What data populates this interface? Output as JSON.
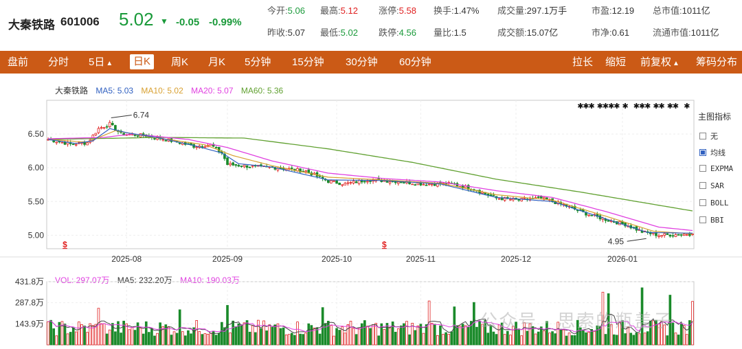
{
  "stock": {
    "name": "大秦铁路",
    "code": "601006",
    "price": "5.02",
    "change": "-0.05",
    "change_pct": "-0.99%"
  },
  "stats": {
    "open": {
      "label": "今开:",
      "value": "5.06"
    },
    "high": {
      "label": "最高:",
      "value": "5.12"
    },
    "limit_up": {
      "label": "涨停:",
      "value": "5.58"
    },
    "turnover": {
      "label": "换手:",
      "value": "1.47%"
    },
    "volume": {
      "label": "成交量:",
      "value": "297.1万手"
    },
    "pe": {
      "label": "市盈:",
      "value": "12.19"
    },
    "mcap": {
      "label": "总市值:",
      "value": "1011亿"
    },
    "prev_close": {
      "label": "昨收:",
      "value": "5.07"
    },
    "low": {
      "label": "最低:",
      "value": "5.02"
    },
    "limit_down": {
      "label": "跌停:",
      "value": "4.56"
    },
    "vol_ratio": {
      "label": "量比:",
      "value": "1.5"
    },
    "amount": {
      "label": "成交额:",
      "value": "15.07亿"
    },
    "pb": {
      "label": "市净:",
      "value": "0.61"
    },
    "float_mcap": {
      "label": "流通市值:",
      "value": "1011亿"
    }
  },
  "toolbar": {
    "left": [
      {
        "label": "盘前"
      },
      {
        "label": "分时"
      },
      {
        "label": "5日",
        "arrow": "▲"
      },
      {
        "label": "日K",
        "active": true
      },
      {
        "label": "周K"
      },
      {
        "label": "月K"
      },
      {
        "label": "5分钟"
      },
      {
        "label": "15分钟"
      },
      {
        "label": "30分钟"
      },
      {
        "label": "60分钟"
      }
    ],
    "right": [
      {
        "label": "拉长"
      },
      {
        "label": "缩短"
      },
      {
        "label": "前复权",
        "arrow": "▲"
      },
      {
        "label": "筹码分布"
      }
    ]
  },
  "price_legend": {
    "name": "大秦铁路",
    "ma5": "MA5: 5.03",
    "ma10": "MA10: 5.02",
    "ma20": "MA20: 5.07",
    "ma60": "MA60: 5.36"
  },
  "volume_legend": {
    "vol": "VOL: 297.07万",
    "ma5": "MA5: 232.20万",
    "ma10": "MA10: 190.03万"
  },
  "indicator_panel": {
    "title": "主图指标",
    "items": [
      {
        "label": "无",
        "checked": false
      },
      {
        "label": "均线",
        "checked": true
      },
      {
        "label": "EXPMA",
        "checked": false
      },
      {
        "label": "SAR",
        "checked": false
      },
      {
        "label": "BOLL",
        "checked": false
      },
      {
        "label": "BBI",
        "checked": false
      }
    ]
  },
  "watermark": "公众号 · 思索的瓶盖子",
  "colors": {
    "up": "#e02020",
    "down": "#1a8a2a",
    "ma5": "#3060c0",
    "ma10": "#d8a030",
    "ma20": "#e040e0",
    "ma60": "#60a030",
    "toolbar": "#cb5a16"
  },
  "chart_data": {
    "type": "candlestick",
    "x_ticks": [
      "2025-08",
      "2025-09",
      "2025-10",
      "2025-11",
      "2025-12",
      "2026-01"
    ],
    "x_tick_index": [
      28,
      64,
      103,
      133,
      167,
      205
    ],
    "y_ticks": [
      "6.50",
      "6.00",
      "5.50",
      "5.00"
    ],
    "y_tick_values": [
      6.5,
      6.0,
      5.5,
      5.0
    ],
    "ylim": [
      4.8,
      7.0
    ],
    "vol_ticks": [
      "431.8万",
      "287.8万",
      "143.9万"
    ],
    "vol_tick_values": [
      431.8,
      287.8,
      143.9
    ],
    "vol_max": 431.8,
    "annotations": {
      "high": "6.74",
      "low": "4.95"
    },
    "high_index": 22,
    "low_index": 214,
    "dividend_index": [
      6,
      120
    ],
    "close_anchors": [
      [
        0,
        6.42
      ],
      [
        8,
        6.35
      ],
      [
        14,
        6.37
      ],
      [
        18,
        6.58
      ],
      [
        22,
        6.65
      ],
      [
        26,
        6.5
      ],
      [
        34,
        6.48
      ],
      [
        42,
        6.42
      ],
      [
        52,
        6.32
      ],
      [
        58,
        6.34
      ],
      [
        62,
        6.22
      ],
      [
        64,
        6.05
      ],
      [
        72,
        6.02
      ],
      [
        82,
        6.0
      ],
      [
        92,
        5.95
      ],
      [
        100,
        5.8
      ],
      [
        106,
        5.76
      ],
      [
        114,
        5.82
      ],
      [
        124,
        5.8
      ],
      [
        134,
        5.76
      ],
      [
        144,
        5.76
      ],
      [
        152,
        5.68
      ],
      [
        160,
        5.55
      ],
      [
        168,
        5.52
      ],
      [
        176,
        5.55
      ],
      [
        184,
        5.45
      ],
      [
        192,
        5.32
      ],
      [
        200,
        5.22
      ],
      [
        206,
        5.16
      ],
      [
        212,
        5.05
      ],
      [
        218,
        5.0
      ],
      [
        230,
        5.02
      ]
    ],
    "ma_anchors": {
      "ma5": [
        [
          0,
          6.42
        ],
        [
          10,
          6.36
        ],
        [
          16,
          6.4
        ],
        [
          22,
          6.58
        ],
        [
          28,
          6.52
        ],
        [
          40,
          6.44
        ],
        [
          52,
          6.33
        ],
        [
          62,
          6.22
        ],
        [
          68,
          6.06
        ],
        [
          80,
          6.01
        ],
        [
          100,
          5.82
        ],
        [
          120,
          5.81
        ],
        [
          140,
          5.76
        ],
        [
          160,
          5.56
        ],
        [
          180,
          5.5
        ],
        [
          200,
          5.23
        ],
        [
          214,
          5.04
        ],
        [
          230,
          5.03
        ]
      ],
      "ma10": [
        [
          0,
          6.42
        ],
        [
          14,
          6.38
        ],
        [
          24,
          6.55
        ],
        [
          36,
          6.46
        ],
        [
          56,
          6.34
        ],
        [
          66,
          6.18
        ],
        [
          80,
          6.03
        ],
        [
          100,
          5.86
        ],
        [
          120,
          5.82
        ],
        [
          140,
          5.77
        ],
        [
          160,
          5.6
        ],
        [
          180,
          5.52
        ],
        [
          200,
          5.27
        ],
        [
          216,
          5.06
        ],
        [
          230,
          5.02
        ]
      ],
      "ma20": [
        [
          0,
          6.43
        ],
        [
          20,
          6.45
        ],
        [
          30,
          6.5
        ],
        [
          50,
          6.42
        ],
        [
          64,
          6.3
        ],
        [
          80,
          6.1
        ],
        [
          100,
          5.92
        ],
        [
          120,
          5.84
        ],
        [
          140,
          5.79
        ],
        [
          160,
          5.66
        ],
        [
          180,
          5.56
        ],
        [
          200,
          5.34
        ],
        [
          218,
          5.12
        ],
        [
          230,
          5.07
        ]
      ],
      "ma60": [
        [
          0,
          6.42
        ],
        [
          40,
          6.45
        ],
        [
          70,
          6.44
        ],
        [
          100,
          6.28
        ],
        [
          130,
          6.08
        ],
        [
          160,
          5.83
        ],
        [
          190,
          5.64
        ],
        [
          230,
          5.36
        ]
      ]
    },
    "vol_last": 297.07,
    "vol_spikes": [
      [
        18,
        250
      ],
      [
        47,
        240
      ],
      [
        64,
        270
      ],
      [
        98,
        255
      ],
      [
        136,
        300
      ],
      [
        145,
        260
      ],
      [
        152,
        290
      ],
      [
        198,
        360
      ],
      [
        200,
        350
      ],
      [
        212,
        390
      ],
      [
        222,
        340
      ],
      [
        230,
        297.07
      ]
    ],
    "n_bars": 231
  }
}
